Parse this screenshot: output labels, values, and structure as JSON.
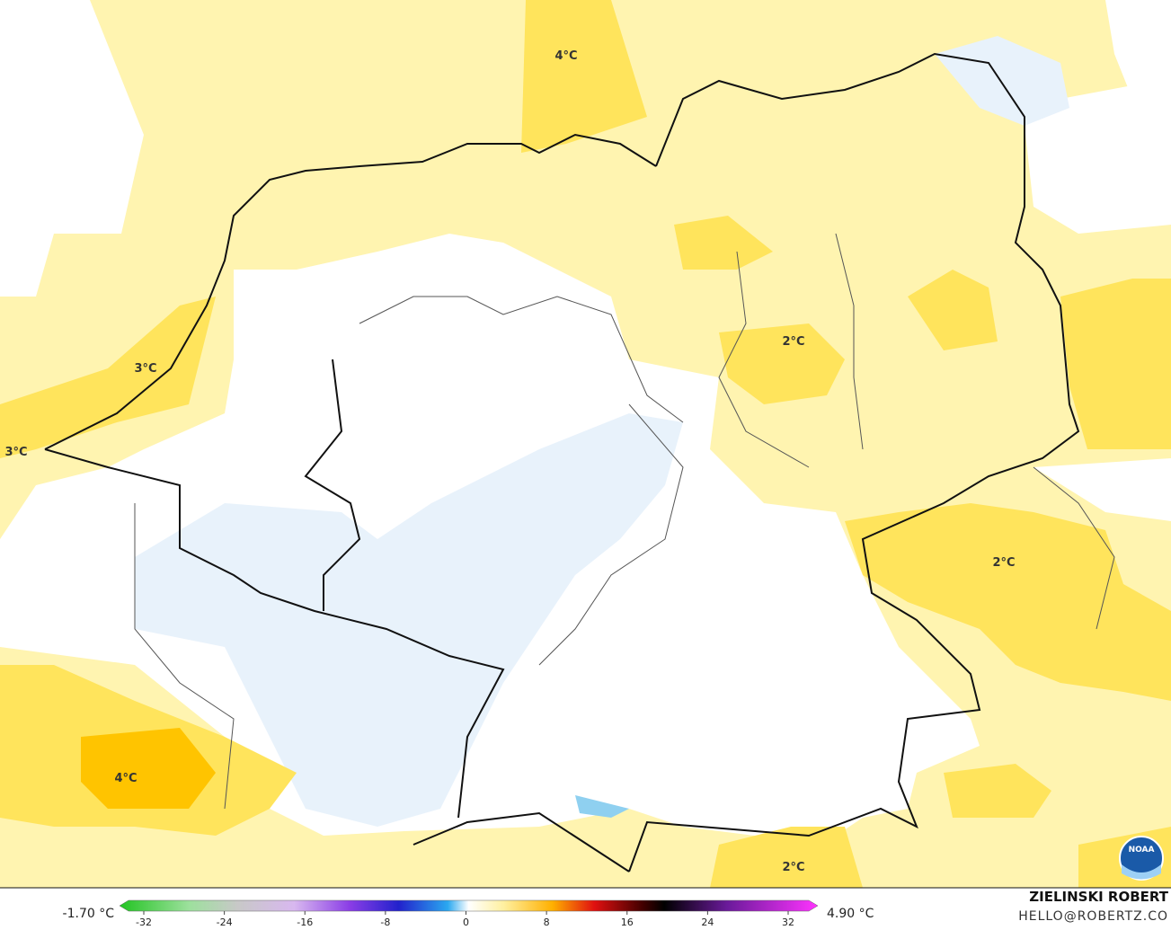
{
  "map": {
    "labels": [
      "4°C",
      "3°C",
      "3°C",
      "2°C",
      "2°C",
      "4°C",
      "2°C"
    ],
    "logo": "NOAA"
  },
  "colorbar": {
    "min_label": "-1.70 °C",
    "max_label": "4.90 °C",
    "ticks": [
      -32,
      -24,
      -16,
      -8,
      0,
      8,
      16,
      24,
      32
    ]
  },
  "credit": {
    "name": "ZIELINSKI ROBERT",
    "contact": "HELLO@ROBERTZ.CO"
  }
}
